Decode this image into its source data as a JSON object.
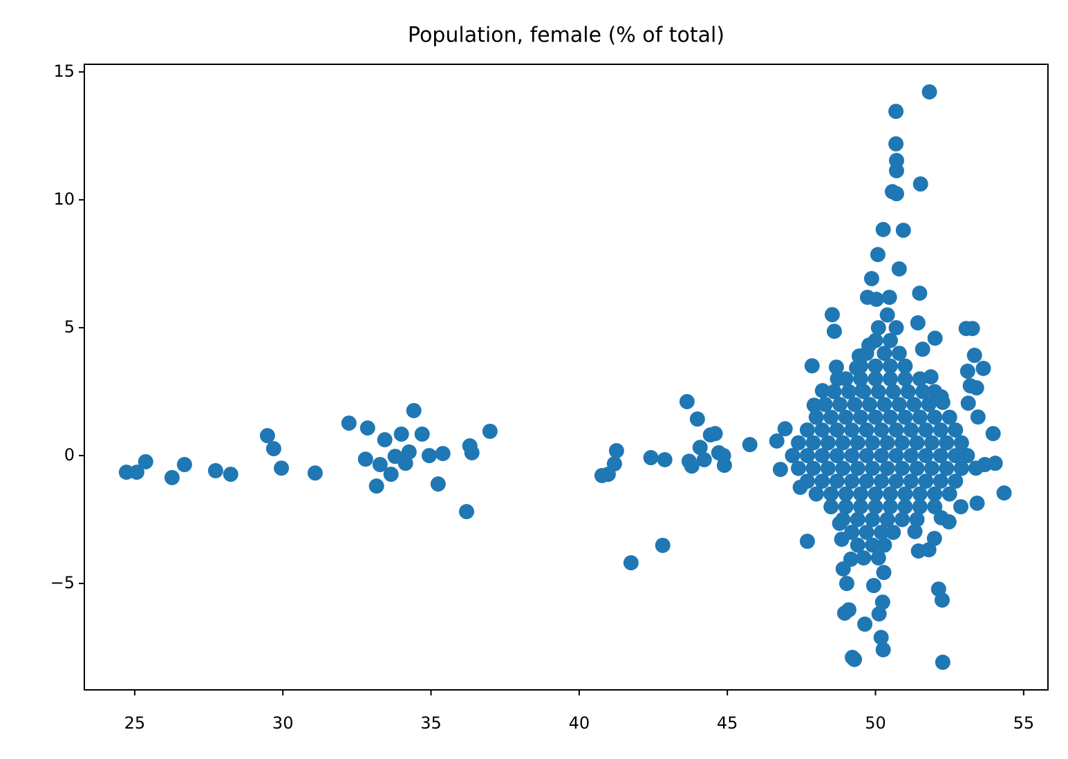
{
  "chart_data": {
    "type": "scatter",
    "title": "Population, female (% of total)",
    "color": "#1f77b4",
    "xlim": [
      23.3,
      55.82
    ],
    "ylim": [
      -9.16,
      15.3
    ],
    "xticks": [
      25,
      30,
      35,
      40,
      45,
      50,
      55
    ],
    "yticks": [
      {
        "value": -5,
        "label": "−5"
      },
      0,
      5,
      10,
      15
    ],
    "x": [
      24.72,
      25.07,
      25.37,
      26.26,
      26.68,
      27.73,
      28.24,
      29.48,
      29.69,
      29.95,
      31.09,
      32.23,
      32.79,
      32.86,
      33.16,
      33.28,
      33.44,
      33.65,
      33.79,
      34.0,
      34.14,
      34.26,
      34.42,
      34.7,
      34.94,
      35.24,
      35.4,
      36.2,
      36.31,
      36.38,
      36.99,
      40.77,
      40.98,
      41.19,
      41.26,
      41.75,
      42.42,
      42.82,
      42.89,
      43.64,
      43.71,
      43.8,
      43.99,
      44.08,
      44.22,
      44.43,
      44.59,
      44.71,
      44.87,
      44.9,
      45.76,
      46.67,
      46.79,
      46.95,
      47.46,
      47.7,
      47.86,
      47.93,
      48.21,
      48.54,
      48.61,
      48.68,
      48.72,
      48.79,
      48.86,
      48.91,
      49.03,
      48.96,
      49.1,
      49.17,
      49.22,
      49.29,
      49.36,
      49.45,
      49.55,
      49.64,
      49.73,
      49.78,
      49.87,
      49.94,
      50.08,
      50.03,
      50.12,
      50.19,
      50.24,
      50.26,
      50.28,
      50.26,
      50.47,
      50.57,
      50.69,
      50.69,
      50.71,
      50.71,
      50.71,
      50.8,
      50.94,
      51.52,
      51.82,
      51.49,
      51.43,
      51.59,
      52.01,
      51.87,
      51.45,
      51.33,
      51.8,
      51.99,
      52.13,
      52.25,
      52.27,
      52.22,
      52.48,
      52.22,
      52.27,
      52.88,
      53.06,
      53.27,
      53.11,
      53.34,
      53.13,
      53.2,
      53.41,
      53.46,
      53.64,
      53.43,
      53.97,
      54.04,
      54.34,
      53.69,
      53.39,
      49.0,
      49.5,
      50.0,
      50.5,
      51.0,
      51.5,
      48.6,
      49.1,
      49.6,
      50.1,
      50.6,
      51.1,
      51.6,
      52.0,
      48.3,
      48.8,
      49.3,
      49.8,
      50.3,
      50.8,
      51.3,
      51.8,
      48.0,
      48.5,
      49.0,
      49.5,
      50.0,
      50.5,
      51.0,
      51.5,
      52.0,
      52.5,
      47.7,
      48.2,
      48.7,
      49.2,
      49.7,
      50.2,
      50.7,
      51.2,
      51.7,
      52.2,
      52.7,
      47.4,
      47.9,
      48.4,
      48.9,
      49.4,
      49.9,
      50.4,
      50.9,
      51.4,
      51.9,
      52.4,
      52.9,
      47.2,
      47.7,
      48.2,
      48.7,
      49.2,
      49.7,
      50.2,
      50.7,
      51.2,
      51.7,
      52.2,
      52.7,
      53.1,
      47.4,
      47.9,
      48.4,
      48.9,
      49.4,
      49.9,
      50.4,
      50.9,
      51.4,
      51.9,
      52.4,
      52.9,
      47.7,
      48.2,
      48.7,
      49.2,
      49.7,
      50.2,
      50.7,
      51.2,
      51.7,
      52.2,
      52.7,
      48.0,
      48.5,
      49.0,
      49.5,
      50.0,
      50.5,
      51.0,
      51.5,
      52.0,
      52.5,
      48.5,
      49.0,
      49.5,
      50.0,
      50.5,
      51.0,
      51.5,
      52.0,
      48.9,
      49.4,
      49.9,
      50.4,
      50.9,
      51.4,
      49.2,
      49.7,
      50.2,
      50.6,
      49.4,
      49.9,
      50.3,
      49.6,
      50.1,
      49.5,
      50.0,
      50.5,
      51.0,
      49.7,
      50.3,
      50.8,
      50.0,
      50.5,
      50.1,
      50.7,
      50.4
    ],
    "y": [
      -0.65,
      -0.65,
      -0.24,
      -0.86,
      -0.35,
      -0.59,
      -0.73,
      0.78,
      0.27,
      -0.49,
      -0.68,
      1.27,
      -0.14,
      1.08,
      -1.19,
      -0.35,
      0.62,
      -0.73,
      -0.03,
      0.84,
      -0.3,
      0.14,
      1.76,
      0.84,
      0,
      -1.11,
      0.08,
      -2.19,
      0.38,
      0.11,
      0.95,
      -0.78,
      -0.73,
      -0.32,
      0.19,
      -4.19,
      -0.08,
      -3.51,
      -0.16,
      2.11,
      -0.22,
      -0.41,
      1.43,
      0.32,
      -0.16,
      0.81,
      0.86,
      0.11,
      0,
      -0.38,
      0.43,
      0.57,
      -0.54,
      1.05,
      -1.24,
      -3.35,
      3.51,
      1.97,
      2.54,
      5.51,
      4.86,
      3.46,
      3.0,
      -2.65,
      -3.27,
      -4.43,
      -5.0,
      -6.16,
      -6.03,
      -4.05,
      -7.89,
      -7.97,
      3.43,
      3.89,
      2.54,
      -6.59,
      6.19,
      4.32,
      6.92,
      -5.08,
      7.86,
      6.11,
      -6.19,
      -7.11,
      -5.73,
      -7.59,
      -4.57,
      8.84,
      6.19,
      10.32,
      12.19,
      13.46,
      11.54,
      11.14,
      10.24,
      7.3,
      8.81,
      10.62,
      14.22,
      6.35,
      5.19,
      4.16,
      4.59,
      3.08,
      -3.73,
      -2.97,
      -3.68,
      -3.24,
      -5.22,
      -5.65,
      -8.08,
      -2.43,
      -2.59,
      2.3,
      2.08,
      -2.0,
      4.97,
      4.97,
      3.3,
      3.92,
      2.05,
      2.73,
      2.65,
      1.51,
      3.41,
      -1.86,
      0.86,
      -0.3,
      -1.46,
      -0.35,
      -0.49,
      3,
      3,
      3,
      3,
      3,
      3,
      2.5,
      2.5,
      2.5,
      2.5,
      2.5,
      2.5,
      2.5,
      2.5,
      2,
      2,
      2,
      2,
      2,
      2,
      2,
      2,
      1.5,
      1.5,
      1.5,
      1.5,
      1.5,
      1.5,
      1.5,
      1.5,
      1.5,
      1.5,
      1,
      1,
      1,
      1,
      1,
      1,
      1,
      1,
      1,
      1,
      1,
      0.5,
      0.5,
      0.5,
      0.5,
      0.5,
      0.5,
      0.5,
      0.5,
      0.5,
      0.5,
      0.5,
      0.5,
      0,
      0,
      0,
      0,
      0,
      0,
      0,
      0,
      0,
      0,
      0,
      0,
      0,
      -0.5,
      -0.5,
      -0.5,
      -0.5,
      -0.5,
      -0.5,
      -0.5,
      -0.5,
      -0.5,
      -0.5,
      -0.5,
      -0.5,
      -1,
      -1,
      -1,
      -1,
      -1,
      -1,
      -1,
      -1,
      -1,
      -1,
      -1,
      -1.5,
      -1.5,
      -1.5,
      -1.5,
      -1.5,
      -1.5,
      -1.5,
      -1.5,
      -1.5,
      -1.5,
      -2,
      -2,
      -2,
      -2,
      -2,
      -2,
      -2,
      -2,
      -2.5,
      -2.5,
      -2.5,
      -2.5,
      -2.5,
      -2.5,
      -3,
      -3,
      -3,
      -3,
      -3.5,
      -3.5,
      -3.5,
      -4,
      -4,
      3.5,
      3.5,
      3.5,
      3.5,
      4,
      4,
      4,
      4.5,
      4.5,
      5,
      5,
      5.5
    ]
  }
}
